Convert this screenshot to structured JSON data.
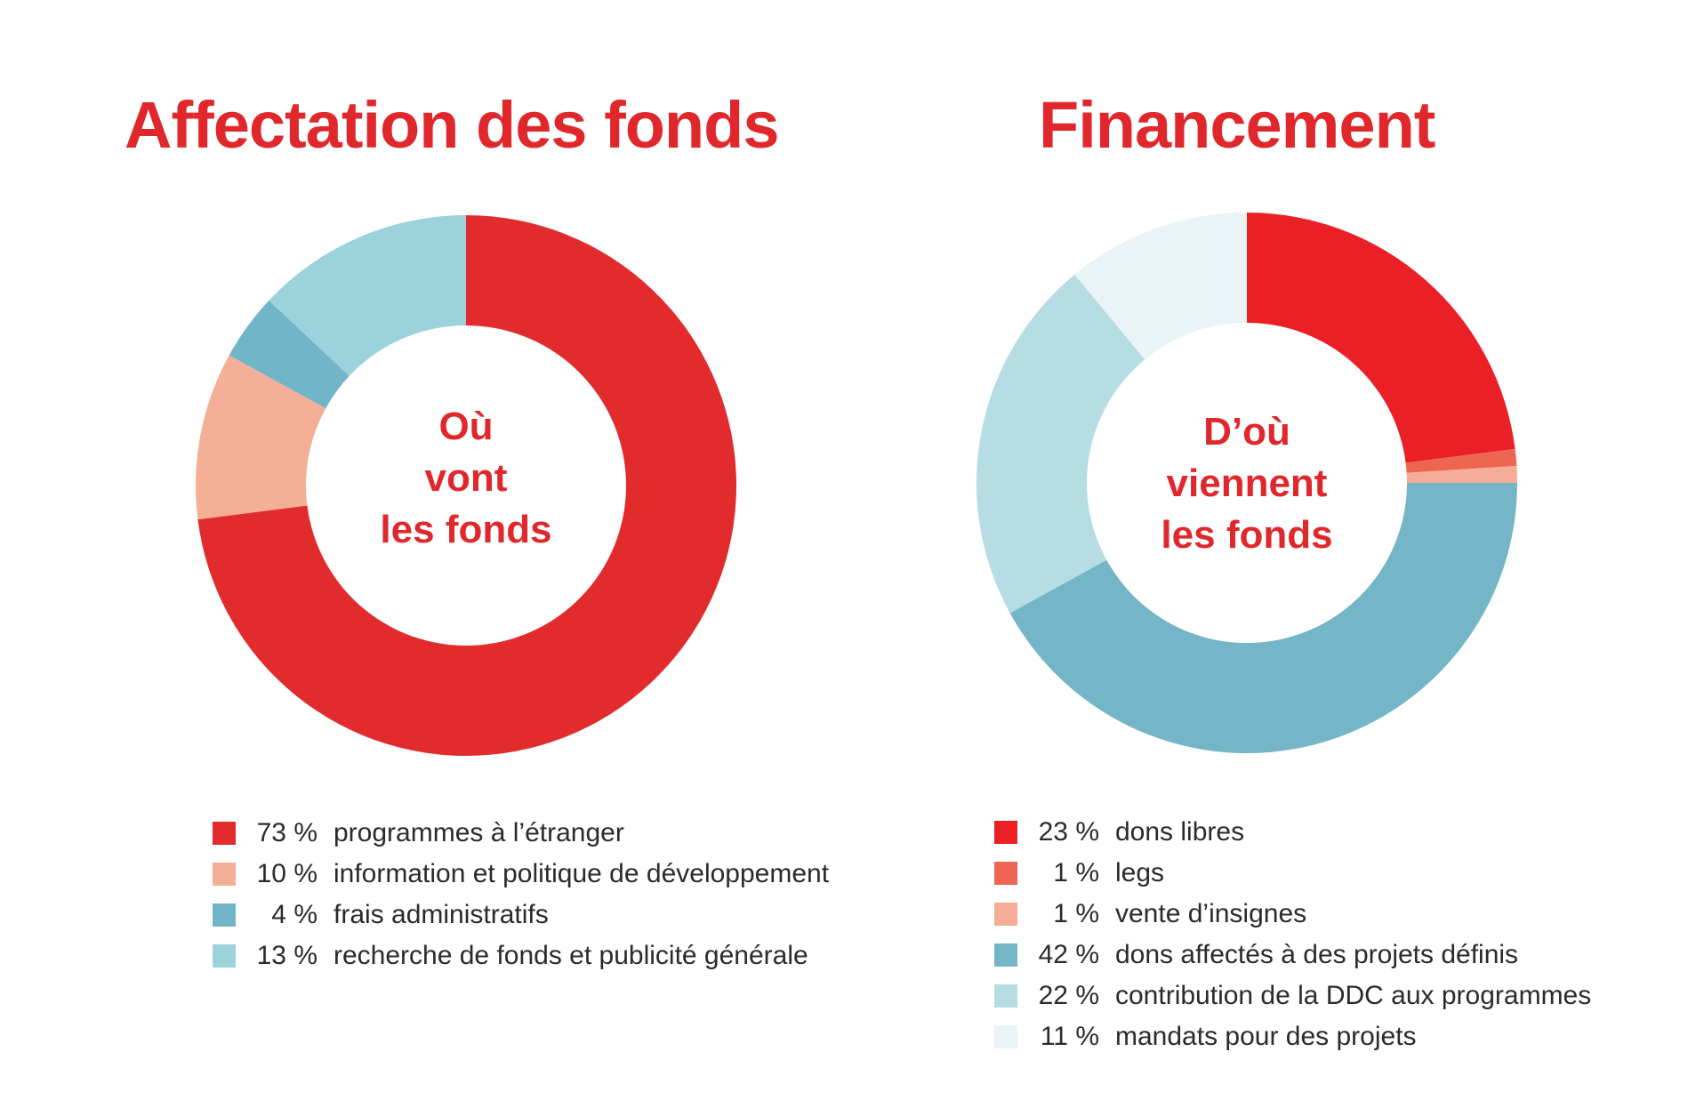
{
  "colors": {
    "accent": "#e0282c",
    "text": "#2b2b2b"
  },
  "chart_data": [
    {
      "type": "pie",
      "variant": "donut",
      "title": "Affectation des fonds",
      "center_label": [
        "Où",
        "vont",
        "les fonds"
      ],
      "legend_position": "bottom",
      "slices": [
        {
          "label": "programmes à l’étranger",
          "value": 73,
          "display": "73 %",
          "color": "#e22b2d"
        },
        {
          "label": "information et politique de développement",
          "value": 10,
          "display": "10 %",
          "color": "#f4b096"
        },
        {
          "label": "frais administratifs",
          "value": 4,
          "display": "4 %",
          "color": "#73b5c8"
        },
        {
          "label": "recherche de fonds et publicité générale",
          "value": 13,
          "display": "13 %",
          "color": "#9bd2dc"
        }
      ],
      "drawn_order": [
        0,
        1,
        2,
        3
      ]
    },
    {
      "type": "pie",
      "variant": "donut",
      "title": "Financement",
      "center_label": [
        "D’où",
        "viennent",
        "les fonds"
      ],
      "legend_position": "bottom",
      "slices": [
        {
          "label": "dons libres",
          "value": 23,
          "display": "23 %",
          "color": "#eb2027"
        },
        {
          "label": "legs",
          "value": 1,
          "display": "1 %",
          "color": "#ed6651"
        },
        {
          "label": "vente d’insignes",
          "value": 1,
          "display": "1 %",
          "color": "#f6ad97"
        },
        {
          "label": "dons affectés à des projets définis",
          "value": 42,
          "display": "42 %",
          "color": "#74b5c7"
        },
        {
          "label": "contribution de la DDC aux programmes",
          "value": 22,
          "display": "22 %",
          "color": "#b6dce4"
        },
        {
          "label": "mandats pour des projets",
          "value": 11,
          "display": "11 %",
          "color": "#eaf3f5"
        }
      ],
      "drawn_order": [
        0,
        1,
        2,
        3,
        4,
        5
      ]
    }
  ]
}
